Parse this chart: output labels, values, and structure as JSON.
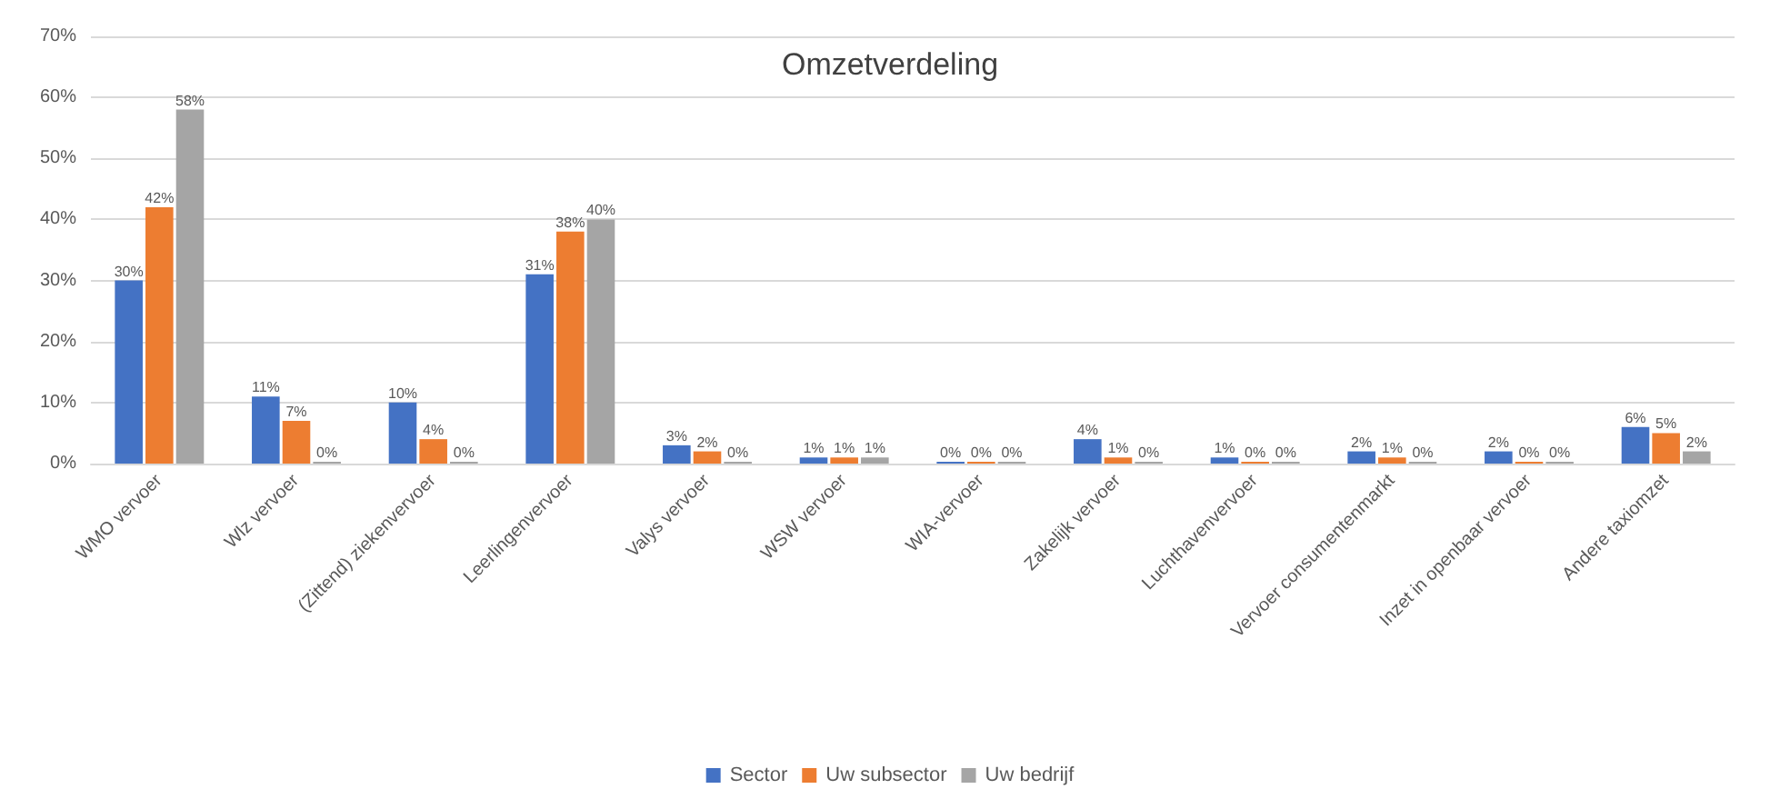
{
  "chart_data": {
    "type": "bar",
    "title": "Omzetverdeling",
    "categories": [
      "WMO vervoer",
      "Wlz vervoer",
      "(Zittend) ziekenvervoer",
      "Leerlingenvervoer",
      "Valys vervoer",
      "WSW vervoer",
      "WIA-vervoer",
      "Zakelijk vervoer",
      "Luchthavenvervoer",
      "Vervoer consumentenmarkt",
      "Inzet in openbaar vervoer",
      "Andere taxiomzet"
    ],
    "series": [
      {
        "name": "Sector",
        "color": "#4472c4",
        "values": [
          30,
          11,
          10,
          31,
          3,
          1,
          0,
          4,
          1,
          2,
          2,
          6
        ],
        "value_labels": [
          "30%",
          "11%",
          "10%",
          "31%",
          "3%",
          "1%",
          "0%",
          "4%",
          "1%",
          "2%",
          "2%",
          "6%"
        ]
      },
      {
        "name": "Uw subsector",
        "color": "#ed7d31",
        "values": [
          42,
          7,
          4,
          38,
          2,
          1,
          0,
          1,
          0,
          1,
          0,
          5
        ],
        "value_labels": [
          "42%",
          "7%",
          "4%",
          "38%",
          "2%",
          "1%",
          "0%",
          "1%",
          "0%",
          "1%",
          "0%",
          "5%"
        ]
      },
      {
        "name": "Uw bedrijf",
        "color": "#a5a5a5",
        "values": [
          58,
          0,
          0,
          40,
          0,
          1,
          0,
          0,
          0,
          0,
          0,
          2
        ],
        "value_labels": [
          "58%",
          "0%",
          "0%",
          "40%",
          "0%",
          "1%",
          "0%",
          "0%",
          "0%",
          "0%",
          "0%",
          "2%"
        ]
      }
    ],
    "ylim": [
      0,
      70
    ],
    "yticks": [
      {
        "value": 0,
        "label": "0%"
      },
      {
        "value": 10,
        "label": "10%"
      },
      {
        "value": 20,
        "label": "20%"
      },
      {
        "value": 30,
        "label": "30%"
      },
      {
        "value": 40,
        "label": "40%"
      },
      {
        "value": 50,
        "label": "50%"
      },
      {
        "value": 60,
        "label": "60%"
      },
      {
        "value": 70,
        "label": "70%"
      }
    ],
    "grid": "y",
    "legend": "bottom"
  }
}
